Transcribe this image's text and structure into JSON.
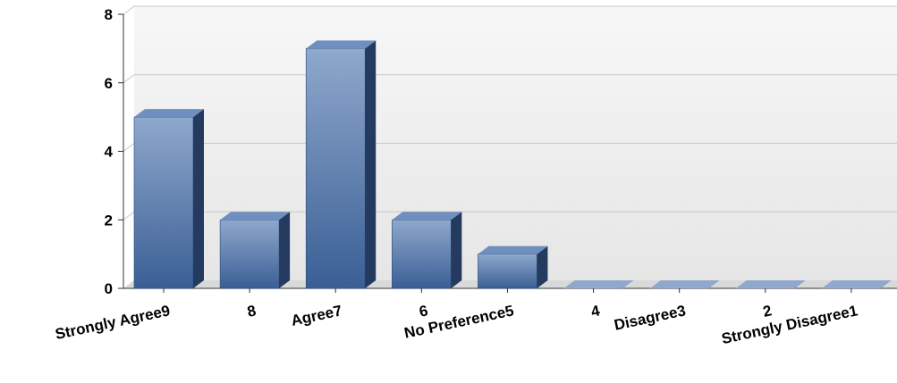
{
  "chart_data": {
    "type": "bar",
    "style": "3d",
    "categories": [
      "Strongly Agree9",
      "8",
      "Agree7",
      "6",
      "No Preference5",
      "4",
      "Disagree3",
      "2",
      "Strongly Disagree1"
    ],
    "values": [
      5,
      2,
      7,
      2,
      1,
      0,
      0,
      0,
      0
    ],
    "yticks": [
      "0",
      "2",
      "4",
      "6",
      "8"
    ],
    "ylim": [
      0,
      8
    ],
    "title": "",
    "xlabel": "",
    "ylabel": "",
    "grid": true,
    "legend": "none",
    "colors": {
      "bar_light": "#8fa8cc",
      "bar_dark": "#3a5f95",
      "bar_side": "#243b5f",
      "bar_top": "#6f8fbf",
      "plot_bg_top": "#f7f7f7",
      "plot_bg_bottom": "#e6e6e6",
      "gridline": "#c8c8c8",
      "axis": "#333333",
      "label": "#000000"
    }
  }
}
